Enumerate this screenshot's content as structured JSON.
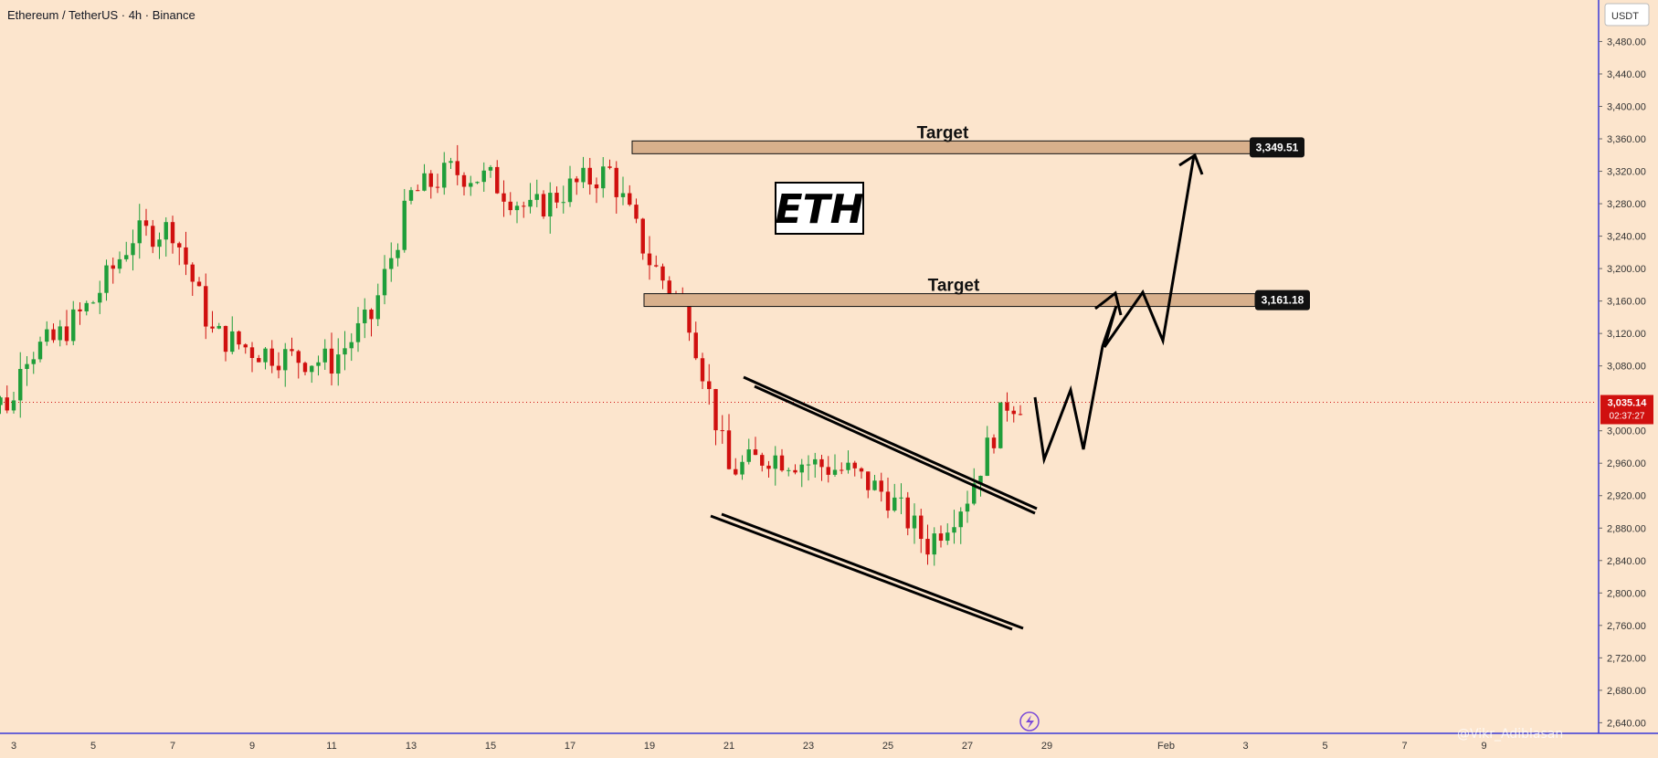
{
  "header": {
    "symbol_title": "Ethereum / TetherUS · 4h · Binance"
  },
  "price_axis": {
    "currency": "USDT",
    "ticks": [
      "3,480.00",
      "3,440.00",
      "3,400.00",
      "3,360.00",
      "3,320.00",
      "3,280.00",
      "3,240.00",
      "3,200.00",
      "3,160.00",
      "3,120.00",
      "3,080.00",
      "3,000.00",
      "2,960.00",
      "2,920.00",
      "2,880.00",
      "2,840.00",
      "2,800.00",
      "2,760.00",
      "2,720.00",
      "2,680.00",
      "2,640.00"
    ],
    "current_price": "3,035.14",
    "countdown": "02:37:27"
  },
  "time_axis": {
    "ticks": [
      "3",
      "5",
      "7",
      "9",
      "11",
      "13",
      "15",
      "17",
      "19",
      "21",
      "23",
      "25",
      "27",
      "29",
      "Feb",
      "3",
      "5",
      "7",
      "9"
    ]
  },
  "annotations": {
    "target_upper_label": "Target",
    "target_upper_price": "3,349.51",
    "target_lower_label": "Target",
    "target_lower_price": "3,161.18",
    "asset_label": "ETH",
    "watermark": "@Vikr_Adiblasan"
  },
  "colors": {
    "background": "#fce5cd",
    "up_candle": "#1f9e3a",
    "down_candle": "#d0100f",
    "price_tag": "#d0100f",
    "target_box": "#d8b08c",
    "axis_line": "#3a3ad8"
  },
  "chart_data": {
    "type": "candlestick",
    "title": "Ethereum / TetherUS · 4h · Binance",
    "ylim": [
      2620,
      3510
    ],
    "y_unit": "USDT",
    "x_labels": [
      "3",
      "5",
      "7",
      "9",
      "11",
      "13",
      "15",
      "17",
      "19",
      "21",
      "23",
      "25",
      "27",
      "29",
      "Feb",
      "3",
      "5",
      "7",
      "9"
    ],
    "current_price": 3035.14,
    "anchors": [
      {
        "date": "3",
        "close": 3090
      },
      {
        "date": "4",
        "close": 3110
      },
      {
        "date": "5",
        "close": 3160
      },
      {
        "date": "6",
        "close": 3240
      },
      {
        "date": "7",
        "close": 3250
      },
      {
        "date": "8",
        "close": 3120
      },
      {
        "date": "9",
        "close": 3100
      },
      {
        "date": "10",
        "close": 3090
      },
      {
        "date": "11",
        "close": 3085
      },
      {
        "date": "12",
        "close": 3140
      },
      {
        "date": "13",
        "close": 3290
      },
      {
        "date": "14",
        "close": 3320
      },
      {
        "date": "15",
        "close": 3310
      },
      {
        "date": "16",
        "close": 3270
      },
      {
        "date": "17",
        "close": 3300
      },
      {
        "date": "18",
        "close": 3320
      },
      {
        "date": "19",
        "close": 3210
      },
      {
        "date": "20",
        "close": 3140
      },
      {
        "date": "21",
        "close": 2950
      },
      {
        "date": "22",
        "close": 2970
      },
      {
        "date": "23",
        "close": 2960
      },
      {
        "date": "24",
        "close": 2950
      },
      {
        "date": "25",
        "close": 2920
      },
      {
        "date": "26",
        "close": 2860
      },
      {
        "date": "27",
        "close": 2920
      },
      {
        "date": "28",
        "close": 3035.14
      }
    ],
    "levels": [
      {
        "label": "Target",
        "value": 3349.51
      },
      {
        "label": "Target",
        "value": 3161.18
      }
    ]
  }
}
